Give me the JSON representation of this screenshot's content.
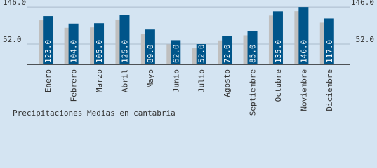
{
  "chart_data": {
    "type": "bar",
    "title": "Precipitaciones Medias en cantabria",
    "categories": [
      "Enero",
      "Febrero",
      "Marzo",
      "Abril",
      "Mayo",
      "Junio",
      "Julio",
      "Agosto",
      "Septiembre",
      "Octubre",
      "Noviembre",
      "Diciembre"
    ],
    "values": [
      123,
      104,
      105,
      125,
      89,
      62,
      52,
      72,
      85,
      135,
      146,
      117
    ],
    "value_labels": [
      "123.0",
      "104.0",
      "105.0",
      "125.0",
      "89.0",
      "62.0",
      "52.0",
      "72.0",
      "85.0",
      "135.0",
      "146.0",
      "117.0"
    ],
    "color": "#00558a",
    "shadow_color": "#bfbfbf",
    "ylim": [
      -3,
      164
    ],
    "yticks": [
      {
        "value": 52,
        "label": "52.0"
      },
      {
        "value": 146,
        "label": "146.0"
      }
    ],
    "grid": true
  }
}
